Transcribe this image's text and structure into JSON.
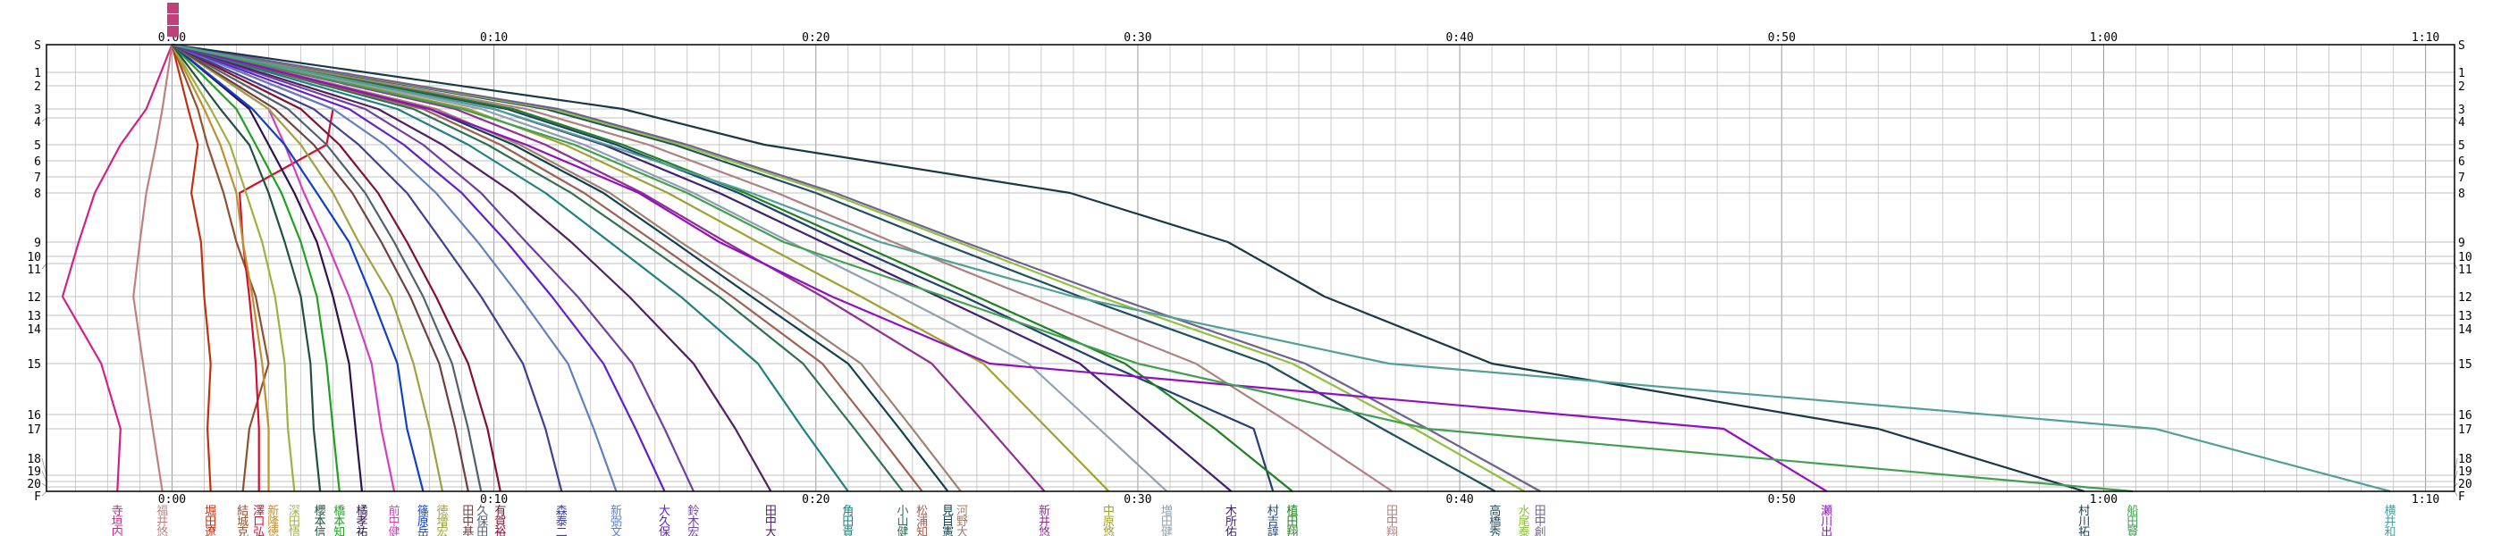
{
  "chart_data": {
    "type": "line",
    "title": "",
    "xlabel": "",
    "ylabel": "",
    "xlim": [
      -3.9,
      70.9
    ],
    "grid": true,
    "x_tick_labels": [
      "0:00",
      "0:10",
      "0:20",
      "0:30",
      "0:40",
      "0:50",
      "1:00",
      "1:10"
    ],
    "x_ticks_minutes": [
      0,
      10,
      20,
      30,
      40,
      50,
      60,
      70
    ],
    "controls": [
      "S",
      "1",
      "2",
      "3",
      "4",
      "5",
      "6",
      "7",
      "8",
      "9",
      "10",
      "11",
      "12",
      "13",
      "14",
      "15",
      "16",
      "17",
      "18",
      "19",
      "20",
      "F"
    ],
    "plotted_controls": [
      "S",
      "3",
      "5",
      "8",
      "9",
      "12",
      "15",
      "17",
      "F"
    ],
    "series": [
      {
        "name": "寺垣内",
        "color": "#d0208a",
        "values": [
          0,
          -0.8,
          -1.6,
          -2.4,
          -2.9,
          -3.4,
          -2.2,
          -1.6,
          -1.7
        ]
      },
      {
        "name": "福井悠",
        "color": "#c08080",
        "values": [
          0,
          -0.3,
          -0.5,
          -0.8,
          -1.0,
          -1.2,
          -0.9,
          -0.6,
          -0.3
        ]
      },
      {
        "name": "堀田遼",
        "color": "#c03010",
        "values": [
          0,
          0.5,
          0.8,
          0.6,
          0.9,
          1.0,
          1.2,
          1.1,
          1.2
        ]
      },
      {
        "name": "結城克",
        "color": "#905030",
        "values": [
          0,
          0.8,
          1.1,
          1.6,
          2.0,
          2.6,
          3.0,
          2.4,
          2.2
        ]
      },
      {
        "name": "澤口弘",
        "color": "#d01030",
        "values": [
          0,
          5.0,
          4.8,
          2.1,
          2.2,
          2.4,
          2.6,
          2.7,
          2.7
        ]
      },
      {
        "name": "新隆徳",
        "color": "#c09030",
        "values": [
          0,
          1.0,
          1.5,
          2.0,
          2.2,
          2.5,
          2.8,
          3.0,
          3.0
        ]
      },
      {
        "name": "深田悟",
        "color": "#a0b040",
        "values": [
          0,
          1.2,
          1.8,
          2.3,
          2.8,
          3.2,
          3.5,
          3.6,
          3.8
        ]
      },
      {
        "name": "櫻本信",
        "color": "#205040",
        "values": [
          0,
          1.5,
          2.4,
          3.0,
          3.5,
          4.0,
          4.3,
          4.4,
          4.6
        ]
      },
      {
        "name": "橋本知",
        "color": "#20a020",
        "values": [
          0,
          2.0,
          2.6,
          3.4,
          4.0,
          4.5,
          4.8,
          5.0,
          5.2
        ]
      },
      {
        "name": "橘孝祐",
        "color": "#301050",
        "values": [
          0,
          2.4,
          3.0,
          3.8,
          4.5,
          5.0,
          5.5,
          5.7,
          5.9
        ]
      },
      {
        "name": "前中健",
        "color": "#d040c0",
        "values": [
          0,
          3.0,
          3.5,
          4.1,
          4.8,
          5.5,
          6.2,
          6.5,
          6.9
        ]
      },
      {
        "name": "篠原岳",
        "color": "#1040c0",
        "values": [
          0,
          2.5,
          3.5,
          4.5,
          5.5,
          6.2,
          7.0,
          7.3,
          7.8
        ]
      },
      {
        "name": "徳増宏",
        "color": "#a0a040",
        "values": [
          0,
          3.0,
          4.0,
          5.0,
          5.8,
          6.8,
          7.5,
          8.0,
          8.4
        ]
      },
      {
        "name": "田中基",
        "color": "#704040",
        "values": [
          0,
          3.2,
          4.4,
          5.6,
          6.5,
          7.4,
          8.3,
          8.8,
          9.2
        ]
      },
      {
        "name": "久保田",
        "color": "#506070",
        "values": [
          0,
          3.6,
          4.8,
          6.0,
          6.9,
          7.8,
          8.7,
          9.2,
          9.6
        ]
      },
      {
        "name": "有賀裕",
        "color": "#801030",
        "values": [
          0,
          4.0,
          5.2,
          6.4,
          7.3,
          8.2,
          9.2,
          9.8,
          10.2
        ]
      },
      {
        "name": "森泰二",
        "color": "#404090",
        "values": [
          0,
          4.4,
          5.8,
          7.3,
          8.4,
          9.6,
          10.9,
          11.6,
          12.1
        ]
      },
      {
        "name": "新弼文",
        "color": "#6080c0",
        "values": [
          0,
          5.0,
          6.6,
          8.2,
          9.5,
          10.8,
          12.3,
          13.1,
          13.8
        ]
      },
      {
        "name": "大久保",
        "color": "#6020d0",
        "values": [
          0,
          5.5,
          7.2,
          9.0,
          10.4,
          11.8,
          13.4,
          14.4,
          15.3
        ]
      },
      {
        "name": "鈴木宏",
        "color": "#7040a0",
        "values": [
          0,
          6.0,
          7.8,
          9.6,
          11.0,
          12.6,
          14.3,
          15.3,
          16.2
        ]
      },
      {
        "name": "田中大",
        "color": "#502060",
        "values": [
          0,
          6.4,
          8.4,
          10.6,
          12.4,
          14.2,
          16.2,
          17.5,
          18.6
        ]
      },
      {
        "name": "角田貴",
        "color": "#208080",
        "values": [
          0,
          7.0,
          9.2,
          11.6,
          13.6,
          15.8,
          18.2,
          19.6,
          21.0
        ]
      },
      {
        "name": "小山健",
        "color": "#307050",
        "values": [
          0,
          7.5,
          9.8,
          12.4,
          14.6,
          17.0,
          19.6,
          21.2,
          22.7
        ]
      },
      {
        "name": "松浦知",
        "color": "#a06050",
        "values": [
          0,
          7.8,
          10.2,
          12.8,
          15.0,
          17.4,
          20.2,
          21.8,
          23.3
        ]
      },
      {
        "name": "見目憲",
        "color": "#104050",
        "values": [
          0,
          8.0,
          10.6,
          13.4,
          15.6,
          18.0,
          21.0,
          22.6,
          24.1
        ]
      },
      {
        "name": "河野大",
        "color": "#a08070",
        "values": [
          0,
          8.2,
          10.8,
          13.6,
          15.8,
          18.4,
          21.4,
          23.0,
          24.5
        ]
      },
      {
        "name": "新井悠",
        "color": "#903090",
        "values": [
          0,
          8.8,
          11.6,
          14.6,
          17.2,
          20.2,
          23.6,
          25.4,
          27.1
        ]
      },
      {
        "name": "中原悠",
        "color": "#a0a030",
        "values": [
          0,
          9.2,
          12.2,
          15.4,
          18.2,
          21.4,
          25.2,
          27.2,
          29.1
        ]
      },
      {
        "name": "増田健",
        "color": "#90a0b0",
        "values": [
          0,
          9.6,
          12.8,
          16.2,
          19.2,
          22.6,
          26.6,
          28.8,
          30.9
        ]
      },
      {
        "name": "木所佑",
        "color": "#402070",
        "values": [
          0,
          10.0,
          13.4,
          17.0,
          20.2,
          23.8,
          28.2,
          30.6,
          32.9
        ]
      },
      {
        "name": "村吉諄",
        "color": "#204070",
        "values": [
          0,
          10.4,
          13.8,
          17.6,
          20.8,
          24.6,
          29.0,
          33.6,
          34.2
        ]
      },
      {
        "name": "植田翔",
        "color": "#208020",
        "values": [
          0,
          10.6,
          14.0,
          17.8,
          21.2,
          25.0,
          29.6,
          32.4,
          34.8
        ]
      },
      {
        "name": "田中翔",
        "color": "#b08080",
        "values": [
          0,
          11.0,
          14.8,
          18.8,
          22.4,
          26.6,
          31.8,
          35.0,
          37.9
        ]
      },
      {
        "name": "高橋秀",
        "color": "#205060",
        "values": [
          0,
          11.6,
          15.6,
          20.0,
          23.8,
          28.2,
          34.0,
          37.6,
          41.1
        ]
      },
      {
        "name": "水尾泰",
        "color": "#90c040",
        "values": [
          0,
          11.8,
          15.8,
          20.4,
          24.4,
          28.8,
          34.8,
          38.6,
          42.0
        ]
      },
      {
        "name": "田中創",
        "color": "#706090",
        "values": [
          0,
          12.0,
          16.0,
          20.6,
          24.6,
          29.2,
          35.2,
          39.0,
          42.5
        ]
      },
      {
        "name": "瀬川出",
        "color": "#9010c0",
        "values": [
          0,
          8.0,
          11.0,
          14.5,
          17.0,
          20.5,
          25.4,
          48.2,
          51.4
        ]
      },
      {
        "name": "村川拓",
        "color": "#183848",
        "values": [
          0,
          14.0,
          18.4,
          27.9,
          32.8,
          35.8,
          41.0,
          53.0,
          59.4
        ]
      },
      {
        "name": "船田賢",
        "color": "#40a050",
        "values": [
          0,
          9.0,
          12.5,
          16.0,
          19.0,
          24.0,
          30.0,
          39.0,
          60.9
        ]
      },
      {
        "name": "横井和",
        "color": "#50a098",
        "values": [
          0,
          10.0,
          13.5,
          18.0,
          22.0,
          28.0,
          37.8,
          61.6,
          68.9
        ]
      }
    ]
  }
}
